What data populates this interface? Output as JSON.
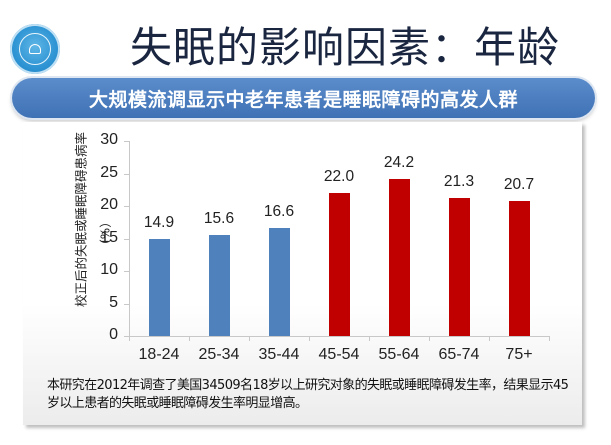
{
  "header": {
    "title": "失眠的影响因素：年龄",
    "logo": "institution-seal-logo"
  },
  "banner": {
    "text": "大规模流调显示中老年患者是睡眠障碍的高发人群"
  },
  "chart_data": {
    "type": "bar",
    "title": "",
    "xlabel": "",
    "ylabel": "校正后的失眠或睡眠障碍患病率",
    "ylabel_unit": "（%）",
    "categories": [
      "18-24",
      "25-34",
      "35-44",
      "45-54",
      "55-64",
      "65-74",
      "75+"
    ],
    "values": [
      14.9,
      15.6,
      16.6,
      22.0,
      24.2,
      21.3,
      20.7
    ],
    "value_labels": [
      "14.9",
      "15.6",
      "16.6",
      "22.0",
      "24.2",
      "21.3",
      "20.7"
    ],
    "bar_colors": [
      "#4f81bd",
      "#4f81bd",
      "#4f81bd",
      "#c00000",
      "#c00000",
      "#c00000",
      "#c00000"
    ],
    "ylim": [
      0,
      30
    ],
    "yticks": [
      0,
      5,
      10,
      15,
      20,
      25,
      30
    ],
    "grid": false,
    "legend": null
  },
  "colors": {
    "blue_bar": "#4f81bd",
    "red_bar": "#c00000",
    "banner": "#4a7dbf",
    "title_text": "#1a2640"
  },
  "note": {
    "text": "本研究在2012年调查了美国34509名18岁以上研究对象的失眠或睡眠障碍发生率，结果显示45岁以上患者的失眠或睡眠障碍发生率明显增高。"
  }
}
